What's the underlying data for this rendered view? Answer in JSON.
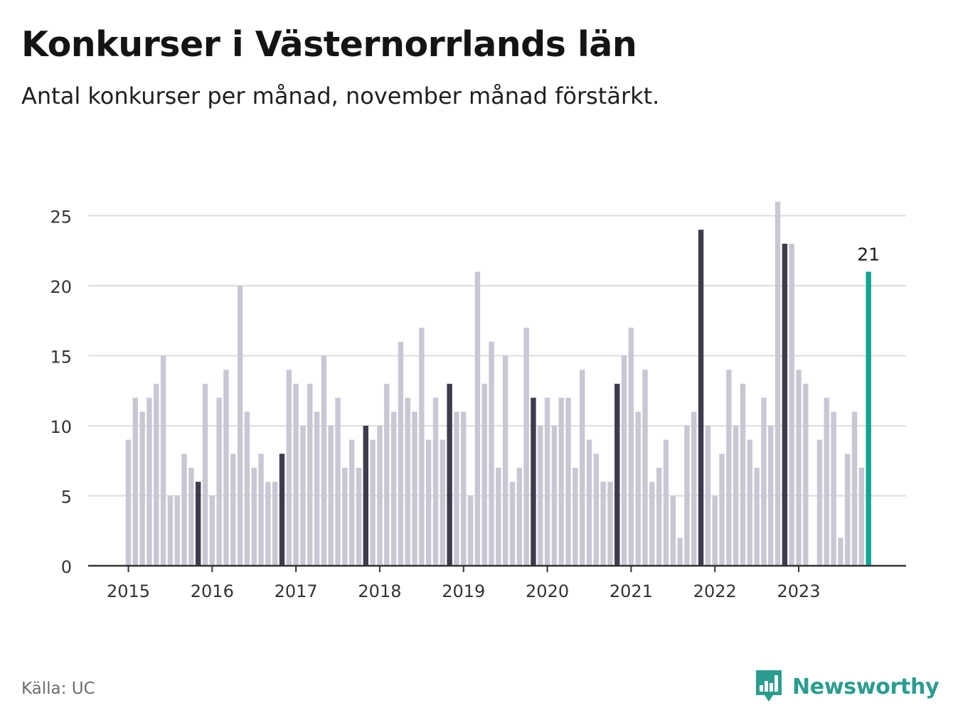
{
  "title": "Konkurser i Västernorrlands län",
  "subtitle": "Antal konkurser per månad, november månad förstärkt.",
  "source": "Källa: UC",
  "brand": {
    "name": "Newsworthy",
    "icon": "newsworthy-logo-icon",
    "color": "#2a9d8f"
  },
  "colors": {
    "bar": "#c8c7d4",
    "highlight": "#3d3c4c",
    "latest": "#12a594",
    "grid": "#dedede",
    "axis": "#333333"
  },
  "chart_data": {
    "type": "bar",
    "title": "Konkurser i Västernorrlands län",
    "subtitle": "Antal konkurser per månad, november månad förstärkt.",
    "xlabel": "",
    "ylabel": "",
    "ylim": [
      0,
      27
    ],
    "yticks": [
      "0",
      "5",
      "10",
      "15",
      "20",
      "25"
    ],
    "xticks": [
      "2015",
      "2016",
      "2017",
      "2018",
      "2019",
      "2020",
      "2021",
      "2022",
      "2023"
    ],
    "grid": true,
    "series": [
      {
        "values": [
          9,
          12,
          11,
          12,
          13,
          15,
          5,
          5,
          8,
          7,
          6,
          13,
          5,
          12,
          14,
          8,
          20,
          11,
          7,
          8,
          6,
          6,
          8,
          14,
          13,
          10,
          13,
          11,
          15,
          10,
          12,
          7,
          9,
          7,
          10,
          9,
          10,
          13,
          11,
          16,
          12,
          11,
          17,
          9,
          12,
          9,
          13,
          11,
          11,
          5,
          21,
          13,
          16,
          7,
          15,
          6,
          7,
          17,
          12,
          10,
          12,
          10,
          12,
          12,
          7,
          14,
          9,
          8,
          6,
          6,
          13,
          15,
          17,
          11,
          14,
          6,
          7,
          9,
          5,
          2,
          10,
          11,
          24,
          10,
          5,
          8,
          14,
          10,
          13,
          9,
          7,
          12,
          10,
          26,
          23,
          23,
          14,
          13,
          0,
          9,
          12,
          11,
          2,
          8,
          11,
          7,
          21
        ]
      }
    ],
    "highlighted_month": "november",
    "data_labels": [
      {
        "label": "21",
        "period": "2023-11"
      }
    ]
  }
}
